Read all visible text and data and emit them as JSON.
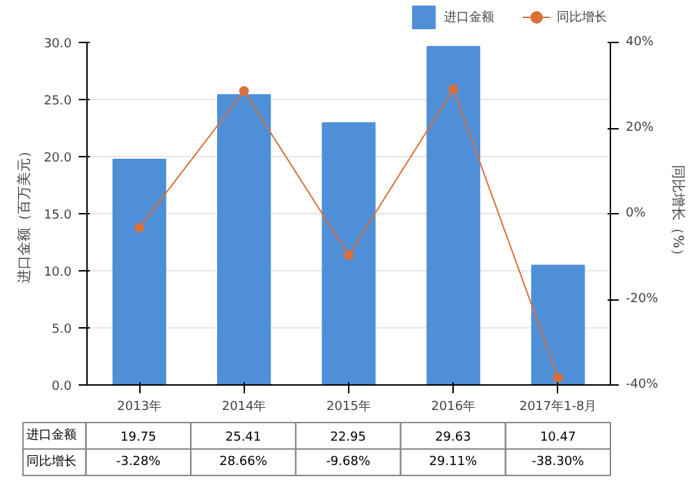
{
  "chart_data": {
    "type": "bar",
    "categories": [
      "2013年",
      "2014年",
      "2015年",
      "2016年",
      "2017年1-8月"
    ],
    "ylabel": "进口金额（百万美元）",
    "y2label": "同比增长（%）",
    "ylim": [
      0,
      30
    ],
    "yticks": [
      {
        "value": 0,
        "label": "0.0"
      },
      {
        "value": 5,
        "label": "5.0"
      },
      {
        "value": 10,
        "label": "10.0"
      },
      {
        "value": 15,
        "label": "15.0"
      },
      {
        "value": 20,
        "label": "20.0"
      },
      {
        "value": 25,
        "label": "25.0"
      },
      {
        "value": 30,
        "label": "30.0"
      }
    ],
    "y2lim": [
      -40,
      40
    ],
    "y2ticks": [
      {
        "value": -40,
        "label": "-40%"
      },
      {
        "value": -20,
        "label": "-20%"
      },
      {
        "value": 0,
        "label": "0%"
      },
      {
        "value": 20,
        "label": "20%"
      },
      {
        "value": 40,
        "label": "40%"
      }
    ],
    "series": [
      {
        "name": "进口金额",
        "color": "#4f8fd8",
        "values": [
          19.75,
          25.41,
          22.95,
          29.63,
          10.47
        ],
        "value_labels": [
          "19.75",
          "25.41",
          "22.95",
          "29.63",
          "10.47"
        ]
      },
      {
        "name": "同比增长",
        "type": "line",
        "axis": "y2",
        "color": "#d9703a",
        "values": [
          -3.28,
          28.66,
          -9.68,
          29.11,
          -38.3
        ],
        "value_labels": [
          "-3.28%",
          "28.66%",
          "-9.68%",
          "29.11%",
          "-38.30%"
        ]
      }
    ],
    "grid": "y",
    "legend": "top",
    "marker": "circle",
    "line_style": "solid"
  }
}
